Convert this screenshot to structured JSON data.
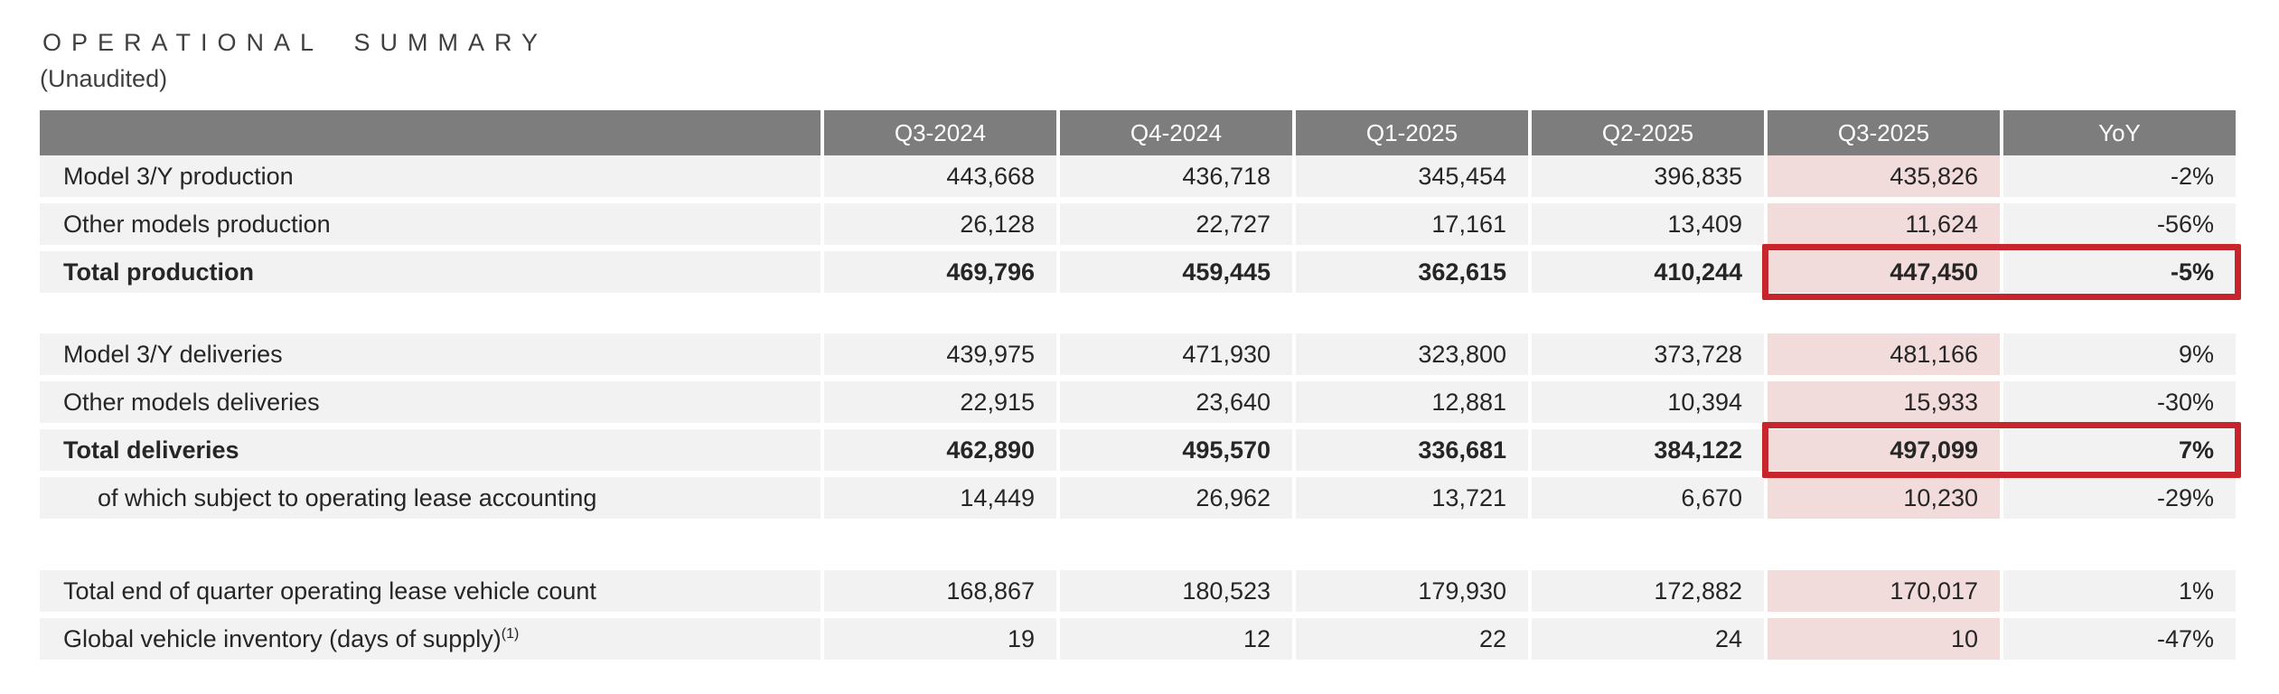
{
  "page": {
    "title": "OPERATIONAL SUMMARY",
    "subtitle": "(Unaudited)"
  },
  "colors": {
    "header_bg": "#7d7d7d",
    "row_bg": "#f2f2f2",
    "highlight_column_bg": "#f1dcdb",
    "highlight_box_border": "#c7252c",
    "text": "#262626",
    "header_text": "#ffffff"
  },
  "table": {
    "columns": [
      "",
      "Q3-2024",
      "Q4-2024",
      "Q1-2025",
      "Q2-2025",
      "Q3-2025",
      "YoY"
    ],
    "highlight_column": "Q3-2025",
    "rows": [
      {
        "style": "normal",
        "label": "Model 3/Y production",
        "values": [
          "443,668",
          "436,718",
          "345,454",
          "396,835",
          "435,826",
          "-2%"
        ]
      },
      {
        "style": "normal",
        "label": "Other models production",
        "values": [
          "26,128",
          "22,727",
          "17,161",
          "13,409",
          "11,624",
          "-56%"
        ]
      },
      {
        "style": "total",
        "red_box": true,
        "label": "Total production",
        "values": [
          "469,796",
          "459,445",
          "362,615",
          "410,244",
          "447,450",
          "-5%"
        ]
      },
      {
        "style": "spacer"
      },
      {
        "style": "normal",
        "label": "Model 3/Y deliveries",
        "values": [
          "439,975",
          "471,930",
          "323,800",
          "373,728",
          "481,166",
          "9%"
        ]
      },
      {
        "style": "normal",
        "label": "Other models deliveries",
        "values": [
          "22,915",
          "23,640",
          "12,881",
          "10,394",
          "15,933",
          "-30%"
        ]
      },
      {
        "style": "total",
        "red_box": true,
        "label": "Total deliveries",
        "values": [
          "462,890",
          "495,570",
          "336,681",
          "384,122",
          "497,099",
          "7%"
        ]
      },
      {
        "style": "indent",
        "label": "of which subject to operating lease accounting",
        "values": [
          "14,449",
          "26,962",
          "13,721",
          "6,670",
          "10,230",
          "-29%"
        ]
      },
      {
        "style": "spacer-big"
      },
      {
        "style": "normal",
        "label": "Total end of quarter operating lease vehicle count",
        "values": [
          "168,867",
          "180,523",
          "179,930",
          "172,882",
          "170,017",
          "1%"
        ]
      },
      {
        "style": "normal",
        "label": "Global vehicle inventory (days of supply)",
        "label_superscript": "(1)",
        "values": [
          "19",
          "12",
          "22",
          "24",
          "10",
          "-47%"
        ]
      }
    ]
  }
}
